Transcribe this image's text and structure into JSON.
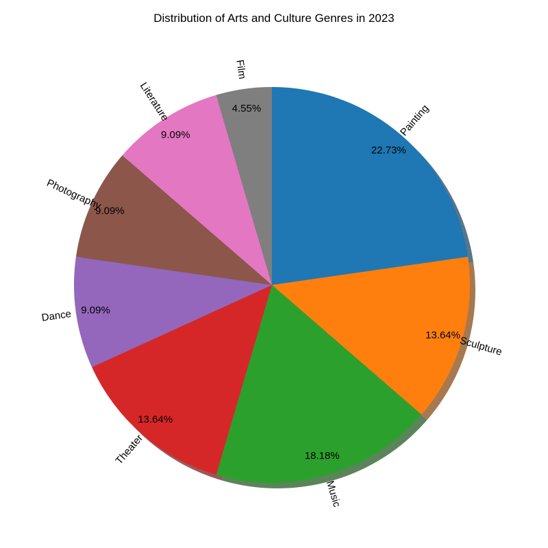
{
  "chart_data": {
    "type": "pie",
    "title": "Distribution of Arts and Culture Genres in 2023",
    "slices": [
      {
        "label": "Painting",
        "percent_label": "22.73%",
        "value": 22.73,
        "color": "#1f77b4"
      },
      {
        "label": "Sculpture",
        "percent_label": "13.64%",
        "value": 13.64,
        "color": "#ff7f0e"
      },
      {
        "label": "Music",
        "percent_label": "18.18%",
        "value": 18.18,
        "color": "#2ca02c"
      },
      {
        "label": "Theater",
        "percent_label": "13.64%",
        "value": 13.64,
        "color": "#d62728"
      },
      {
        "label": "Dance",
        "percent_label": "9.09%",
        "value": 9.09,
        "color": "#9467bd"
      },
      {
        "label": "Photography",
        "percent_label": "9.09%",
        "value": 9.09,
        "color": "#8c564b"
      },
      {
        "label": "Literature",
        "percent_label": "9.09%",
        "value": 9.09,
        "color": "#e377c2"
      },
      {
        "label": "Film",
        "percent_label": "4.55%",
        "value": 4.55,
        "color": "#7f7f7f"
      }
    ],
    "start_angle_deg": 90,
    "direction": "clockwise",
    "shadow": true,
    "legend": false
  }
}
